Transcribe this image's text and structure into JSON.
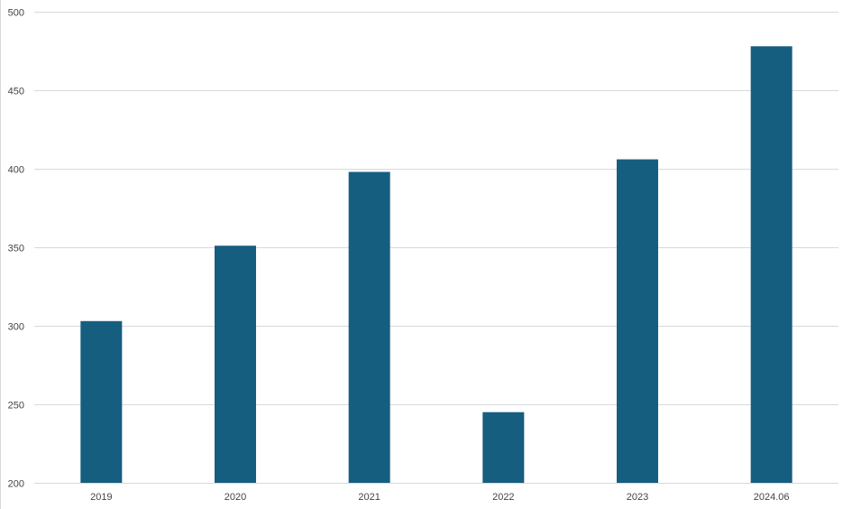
{
  "chart_data": {
    "type": "bar",
    "categories": [
      "2019",
      "2020",
      "2021",
      "2022",
      "2023",
      "2024.06"
    ],
    "values": [
      303,
      351,
      398,
      245,
      406,
      478
    ],
    "ylim": [
      200,
      500
    ],
    "yticks": [
      200,
      250,
      300,
      350,
      400,
      450,
      500
    ],
    "grid": true,
    "bar_color": "#165e80",
    "grid_color": "#d9d9d9"
  }
}
